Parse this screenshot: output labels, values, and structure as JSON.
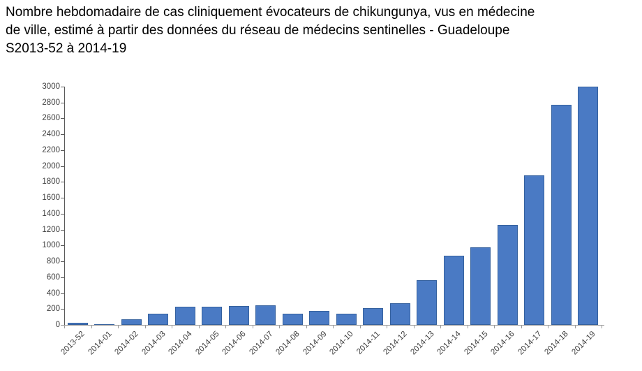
{
  "title_lines": [
    "Nombre hebdomadaire de cas cliniquement évocateurs de chikungunya, vus en médecine",
    "de ville, estimé à partir des données du réseau de médecins sentinelles - Guadeloupe",
    "S2013-52 à 2014-19"
  ],
  "chart_data": {
    "type": "bar",
    "title": "Nombre hebdomadaire de cas cliniquement évocateurs de chikungunya, vus en médecine de ville, estimé à partir des données du réseau de médecins sentinelles - Guadeloupe S2013-52 à 2014-19",
    "categories": [
      "2013-52",
      "2014-01",
      "2014-02",
      "2014-03",
      "2014-04",
      "2014-05",
      "2014-06",
      "2014-07",
      "2014-08",
      "2014-09",
      "2014-10",
      "2014-11",
      "2014-12",
      "2014-13",
      "2014-14",
      "2014-15",
      "2014-16",
      "2014-17",
      "2014-18",
      "2014-19"
    ],
    "values": [
      30,
      10,
      70,
      140,
      225,
      230,
      240,
      250,
      140,
      175,
      140,
      210,
      275,
      565,
      870,
      980,
      1260,
      1880,
      2775,
      3000
    ],
    "xlabel": "",
    "ylabel": "",
    "ylim": [
      0,
      3000
    ],
    "ytick_step": 200,
    "grid": false,
    "legend": "none",
    "bar_color": "#4a7ac4",
    "bar_border_color": "#35619e",
    "y_axis_color": "#595959",
    "x_axis_color": "#9a9a9a",
    "tick_label_color": "#3f3f3f"
  }
}
